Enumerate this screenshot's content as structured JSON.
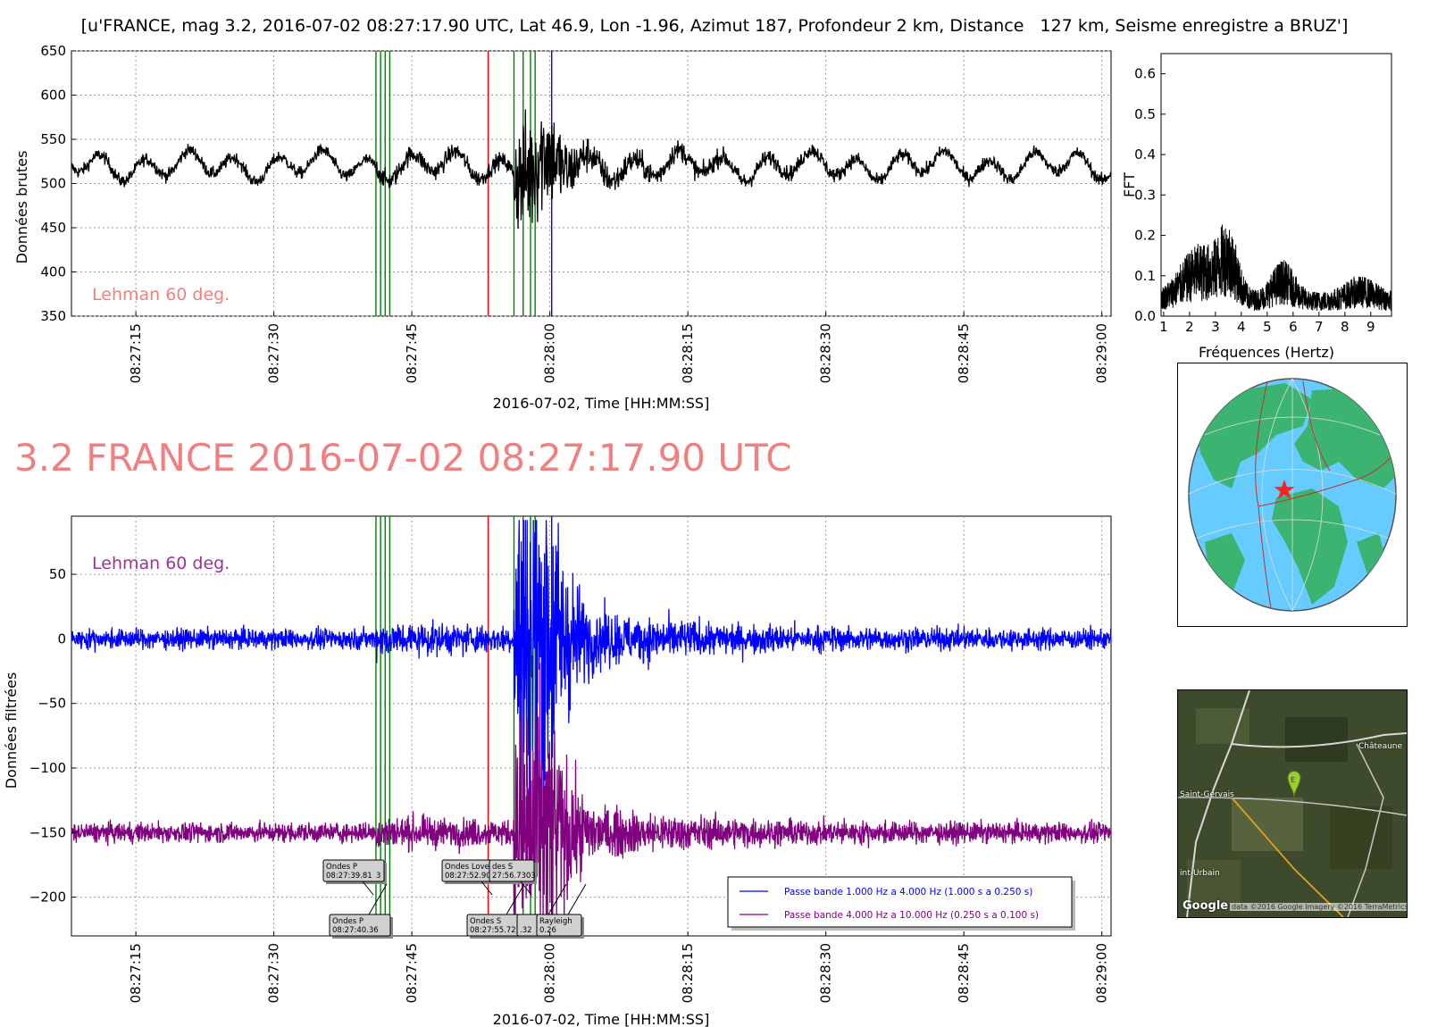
{
  "header": {
    "title": "[u'FRANCE, mag 3.2, 2016-07-02 08:27:17.90 UTC, Lat 46.9, Lon -1.96, Azimut 187, Profondeur 2 km, Distance   127 km, Seisme enregistre a BRUZ']",
    "event_title": "3.2 FRANCE 2016-07-02 08:27:17.90 UTC"
  },
  "colors": {
    "raw": "#000000",
    "band1": "#0000ff",
    "band2": "#800080",
    "p_lines": "#008000",
    "s_line": "#ff0000",
    "blue_line": "#0000ff",
    "lehman": "#f08080",
    "lehman2": "#993399"
  },
  "chart_data": [
    {
      "type": "line",
      "panel": "raw",
      "ylabel": "Données brutes",
      "xlabel": "2016-07-02, Time [HH:MM:SS]",
      "ylim": [
        350,
        650
      ],
      "yticks": [
        "350",
        "400",
        "450",
        "500",
        "550",
        "600",
        "650"
      ],
      "xlim": [
        "08:27:08",
        "08:29:01"
      ],
      "xticks": [
        "08:27:15",
        "08:27:30",
        "08:27:45",
        "08:28:00",
        "08:28:15",
        "08:28:30",
        "08:28:45",
        "08:29:00"
      ],
      "annotation": "Lehman 60 deg.",
      "grid": true,
      "baseline": 520,
      "phase_lines_green": [
        "08:27:41.1",
        "08:27:41.6",
        "08:27:42.1",
        "08:27:42.6",
        "08:27:56.1",
        "08:27:57.1",
        "08:27:57.9",
        "08:27:58.4"
      ],
      "phase_line_red": "08:27:53.3",
      "phase_line_blue": "08:28:00.2"
    },
    {
      "type": "line",
      "panel": "fft",
      "ylabel": "FFT",
      "xlabel": "Fréquences (Hertz)",
      "xlim": [
        0.9,
        9.8
      ],
      "ylim": [
        0.0,
        0.65
      ],
      "xticks": [
        "1",
        "2",
        "3",
        "4",
        "5",
        "6",
        "7",
        "8",
        "9"
      ],
      "yticks": [
        "0.0",
        "0.1",
        "0.2",
        "0.3",
        "0.4",
        "0.5",
        "0.6"
      ]
    },
    {
      "type": "line",
      "panel": "filtered",
      "ylabel": "Données filtrées",
      "xlabel": "2016-07-02, Time [HH:MM:SS]",
      "ylim": [
        -230,
        95
      ],
      "yticks": [
        "−200",
        "−150",
        "−100",
        "−50",
        "0",
        "50"
      ],
      "xlim": [
        "08:27:08",
        "08:29:01"
      ],
      "xticks": [
        "08:27:15",
        "08:27:30",
        "08:27:45",
        "08:28:00",
        "08:28:15",
        "08:28:30",
        "08:28:45",
        "08:29:00"
      ],
      "annotation": "Lehman 60 deg.",
      "grid": true,
      "series": [
        {
          "name": "Passe bande 1.000 Hz a 4.000 Hz (1.000 s a 0.250 s)",
          "offset": 0
        },
        {
          "name": "Passe bande 4.000 Hz a 10.000 Hz (0.250 s a 0.100 s)",
          "offset": -150
        }
      ],
      "phase_labels": [
        {
          "line1": "Ondes P",
          "line2": "08:27:39.81",
          "suffix": "3",
          "row": "upper"
        },
        {
          "line1": "Ondes P",
          "line2": "08:27:40.36",
          "suffix": "",
          "row": "lower"
        },
        {
          "line1": "Ondes Love",
          "line2": "08:27:52.90",
          "suffix": "",
          "row": "upper"
        },
        {
          "line1": "des S",
          "line2": "27:56.73",
          "suffix": "03",
          "row": "upper"
        },
        {
          "line1": "Ondes S",
          "line2": "08:27:55.72",
          "suffix": "",
          "row": "lower"
        },
        {
          "line1": "",
          "line2": ".32",
          "suffix": "3",
          "row": "lower"
        },
        {
          "line1": "Rayleigh",
          "line2": "0.26",
          "suffix": "",
          "row": "lower"
        }
      ]
    }
  ],
  "map": {
    "marker": "star"
  },
  "satellite": {
    "labels": [
      "Châteaune",
      "Saint-Gervais",
      "int-Urbain"
    ],
    "pin": "E",
    "logo": "Google",
    "credit": "data ©2016 Google  Imagery ©2016 TerraMetrics"
  }
}
